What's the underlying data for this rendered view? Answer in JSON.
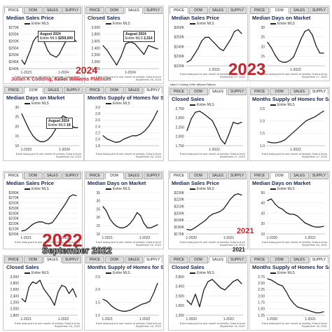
{
  "tab_labels": [
    "PRICE",
    "DOM",
    "SALES",
    "SUPPLY"
  ],
  "overlays": {
    "year_2024": "2024",
    "agent": "Julian K Codding, Keller Williams Platinum",
    "year_2023": "2023",
    "agent_small": "Julian K Codding, Keller Williams Platinum",
    "year_2022": "2022",
    "month_2022": "September 2022",
    "year_2021_red": "2021",
    "year_2021_small": "2021"
  },
  "common": {
    "legend": "Entire MLS",
    "note": "Each data point is one month of activity. Data is from",
    "note_date_2024": "September 26, 2024",
    "note_date_2023": "September 17, 2023",
    "note_date_2022": "September 16, 2022",
    "note_date_2021": "September 16, 2021"
  },
  "tooltips": {
    "t1": {
      "month": "August 2024",
      "series": "Entire MLS",
      "value": "$259,000"
    },
    "t2": {
      "month": "August 2024",
      "series": "Entire MLS",
      "value": "2,314"
    },
    "t3": {
      "month": "August 2024",
      "series": "Entire MLS",
      "value": "19"
    }
  },
  "chart_data": [
    {
      "id": "q1-price",
      "type": "line",
      "title": "Median Sales Price",
      "active_tab": 0,
      "x_ticks": [
        "1-2023",
        "1-2024"
      ],
      "y_ticks": [
        "$240K",
        "$245K",
        "$250K",
        "$255K",
        "$260K",
        "$265K",
        "$270K"
      ],
      "ylim": [
        240000,
        270000
      ],
      "series": [
        {
          "name": "Entire MLS",
          "values": [
            246000,
            243000,
            248000,
            253000,
            259000,
            262000,
            263000,
            262000,
            258000,
            253000,
            250000,
            249000,
            248000,
            250000,
            254000,
            258000,
            262000,
            263000,
            261000,
            259000
          ]
        }
      ]
    },
    {
      "id": "q1-sales",
      "type": "line",
      "title": "Closed Sales",
      "active_tab": 2,
      "x_ticks": [
        "1-2024"
      ],
      "y_ticks": [
        "1,800",
        "2,000",
        "2,200",
        "2,400",
        "2,600",
        "2,800",
        "3,000"
      ],
      "ylim": [
        1800,
        3000
      ],
      "series": [
        {
          "name": "Entire MLS",
          "values": [
            2450,
            2300,
            2100,
            1900,
            2150,
            2500,
            2550,
            2500,
            2350,
            2200,
            2450,
            2400,
            2350
          ]
        }
      ]
    },
    {
      "id": "q1-dom",
      "type": "line",
      "title": "Median Days on Market",
      "active_tab": 1,
      "x_ticks": [
        "1-2023",
        "1-2024"
      ],
      "y_ticks": [
        "10",
        "15",
        "20",
        "25",
        "30"
      ],
      "ylim": [
        10,
        30
      ],
      "series": [
        {
          "name": "Entire MLS",
          "values": [
            26,
            22,
            18,
            15,
            13,
            12,
            12,
            13,
            15,
            18,
            22,
            25,
            24,
            21,
            19,
            19
          ]
        }
      ]
    },
    {
      "id": "q1-supply",
      "type": "line",
      "title": "Months Supply of Homes for Sale",
      "active_tab": 3,
      "x_ticks": [],
      "y_ticks": [
        "1.8",
        "2.0",
        "2.2",
        "2.4",
        "2.6",
        "2.8",
        "3.0"
      ],
      "ylim": [
        1.8,
        3.0
      ],
      "series": [
        {
          "name": "Entire MLS",
          "values": [
            2.1,
            2.0,
            1.95,
            1.9,
            1.92,
            2.0,
            2.05,
            2.1,
            2.1,
            2.15,
            2.25,
            2.4,
            2.6,
            2.85
          ]
        }
      ]
    },
    {
      "id": "q2-price",
      "type": "line",
      "title": "Median Sales Price",
      "active_tab": 0,
      "x_ticks": [
        "1-2022"
      ],
      "y_ticks": [
        "$220K",
        "$230K",
        "$240K",
        "$250K",
        "$260K"
      ],
      "ylim": [
        220000,
        262000
      ],
      "series": [
        {
          "name": "Entire MLS",
          "values": [
            224000,
            226000,
            232000,
            238000,
            246000,
            250000,
            250000,
            246000,
            242000,
            238000,
            236000,
            242000,
            248000,
            256000,
            258000,
            254000
          ]
        }
      ]
    },
    {
      "id": "q2-dom",
      "type": "line",
      "title": "Median Days on Market",
      "active_tab": 1,
      "x_ticks": [
        "1-2022"
      ],
      "y_ticks": [
        "10",
        "15",
        "20",
        "25",
        "30"
      ],
      "ylim": [
        10,
        32
      ],
      "series": [
        {
          "name": "Entire MLS",
          "values": [
            23,
            20,
            16,
            13,
            12,
            12,
            13,
            15,
            20,
            25,
            29,
            30,
            27,
            21,
            17,
            17
          ]
        }
      ]
    },
    {
      "id": "q2-sales",
      "type": "line",
      "title": "Closed Sales",
      "active_tab": 2,
      "x_ticks": [
        "1-2022"
      ],
      "y_ticks": [
        "1,750",
        "2,000",
        "2,250",
        "2,500",
        "2,750"
      ],
      "ylim": [
        1750,
        2900
      ],
      "series": [
        {
          "name": "Entire MLS",
          "values": [
            2200,
            2550,
            2750,
            2780,
            2700,
            2600,
            2500,
            2250,
            1950,
            1800,
            2100,
            2450,
            2400,
            2450
          ]
        }
      ]
    },
    {
      "id": "q2-supply",
      "type": "line",
      "title": "Months Supply of Homes for Sale",
      "active_tab": 3,
      "x_ticks": [
        "1-2022"
      ],
      "y_ticks": [
        "1.0",
        "1.5",
        "2.0",
        "2.5"
      ],
      "ylim": [
        0.8,
        2.8
      ],
      "series": [
        {
          "name": "Entire MLS",
          "values": [
            1.0,
            0.95,
            0.95,
            1.0,
            1.1,
            1.3,
            1.5,
            1.7,
            1.9,
            2.1,
            2.2,
            2.3,
            2.45,
            2.6
          ]
        }
      ]
    },
    {
      "id": "q3-price",
      "type": "line",
      "title": "Median Sales Price",
      "active_tab": 0,
      "x_ticks": [
        "1-2021",
        "1-2022"
      ],
      "y_ticks": [
        "$200K",
        "$210K",
        "$220K",
        "$230K",
        "$240K",
        "$250K",
        "$260K",
        "$270K",
        "$280K"
      ],
      "ylim": [
        200000,
        285000
      ],
      "series": [
        {
          "name": "Entire MLS",
          "values": [
            206000,
            207000,
            212000,
            218000,
            222000,
            224000,
            224000,
            221000,
            220000,
            223000,
            232000,
            242000,
            252000,
            262000,
            274000,
            278000,
            276000
          ]
        }
      ]
    },
    {
      "id": "q3-dom",
      "type": "line",
      "title": "Median Days on Market",
      "active_tab": 1,
      "x_ticks": [
        "1-2021",
        "1-2022"
      ],
      "y_ticks": [
        "10",
        "15",
        "20",
        "25",
        "30",
        "35"
      ],
      "ylim": [
        8,
        36
      ],
      "series": [
        {
          "name": "Entire MLS",
          "values": [
            26,
            23,
            18,
            15,
            13,
            12,
            12,
            13,
            15,
            18,
            22,
            20,
            15,
            12,
            12,
            13,
            14
          ]
        }
      ]
    },
    {
      "id": "q3-sales",
      "type": "line",
      "title": "Closed Sales",
      "active_tab": 2,
      "x_ticks": [
        "1-2021",
        "1-2022"
      ],
      "y_ticks": [
        "1,800",
        "2,000",
        "2,200",
        "2,400",
        "2,600",
        "2,800",
        "3,000"
      ],
      "ylim": [
        1800,
        3000
      ],
      "series": [
        {
          "name": "Entire MLS",
          "values": [
            2300,
            2200,
            2650,
            2800,
            2750,
            2850,
            2600,
            2450,
            2300,
            2100,
            2500,
            2700,
            2650,
            2450,
            2600,
            2350
          ]
        }
      ]
    },
    {
      "id": "q3-supply",
      "type": "line",
      "title": "Months Supply of Homes for Sale",
      "active_tab": 3,
      "x_ticks": [
        "1-2021",
        "1-2022"
      ],
      "y_ticks": [
        "1.0",
        "1.5",
        "2.0",
        "2.5"
      ],
      "ylim": [
        0.8,
        2.8
      ],
      "series": [
        {
          "name": "Entire MLS",
          "values": [
            1.6,
            1.5,
            1.3,
            1.15,
            1.05,
            1.0,
            1.0,
            1.05,
            1.15,
            1.25,
            1.35,
            1.4,
            1.5,
            1.9,
            2.4
          ]
        }
      ]
    },
    {
      "id": "q4-price",
      "type": "line",
      "title": "Median Sales Price",
      "active_tab": 0,
      "x_ticks": [
        "1-2020",
        "1-2021"
      ],
      "y_ticks": [
        "$170K",
        "$180K",
        "$190K",
        "$200K",
        "$210K",
        "$220K",
        "$230K"
      ],
      "ylim": [
        165000,
        232000
      ],
      "series": [
        {
          "name": "Entire MLS",
          "values": [
            172000,
            171000,
            174000,
            178000,
            182000,
            186000,
            192000,
            196000,
            198000,
            200000,
            204000,
            212000,
            220000,
            226000,
            228000,
            226000
          ]
        }
      ]
    },
    {
      "id": "q4-dom",
      "type": "line",
      "title": "Median Days on Market",
      "active_tab": 1,
      "x_ticks": [
        "1-2020",
        "1-2021"
      ],
      "y_ticks": [
        "10",
        "20",
        "30",
        "40",
        "50"
      ],
      "ylim": [
        5,
        55
      ],
      "series": [
        {
          "name": "Entire MLS",
          "values": [
            44,
            46,
            40,
            36,
            34,
            30,
            28,
            28,
            26,
            22,
            18,
            16,
            14,
            13,
            13,
            14
          ]
        }
      ]
    },
    {
      "id": "q4-sales",
      "type": "line",
      "title": "Closed Sales",
      "active_tab": 2,
      "x_ticks": [
        "1-2020",
        "1-2021"
      ],
      "y_ticks": [
        "1,200",
        "1,600",
        "2,000",
        "2,400",
        "2,800"
      ],
      "ylim": [
        1100,
        3000
      ],
      "series": [
        {
          "name": "Entire MLS",
          "values": [
            1800,
            1600,
            2100,
            1500,
            2300,
            2700,
            2800,
            2600,
            2400,
            2300,
            2500,
            2700,
            2800,
            2600
          ]
        }
      ]
    },
    {
      "id": "q4-supply",
      "type": "line",
      "title": "Months Supply of Homes for Sale",
      "active_tab": 3,
      "x_ticks": [
        "1-2020",
        "1-2021"
      ],
      "y_ticks": [
        "1.25",
        "1.50",
        "1.75",
        "2.00",
        "2.25",
        "2.50",
        "2.75"
      ],
      "ylim": [
        1.2,
        2.9
      ],
      "series": [
        {
          "name": "Entire MLS",
          "values": [
            2.75,
            2.7,
            2.6,
            2.5,
            2.45,
            2.2,
            1.9,
            1.7,
            1.55,
            1.5,
            1.45,
            1.4,
            1.35,
            1.3,
            1.3,
            1.35
          ]
        }
      ]
    }
  ]
}
